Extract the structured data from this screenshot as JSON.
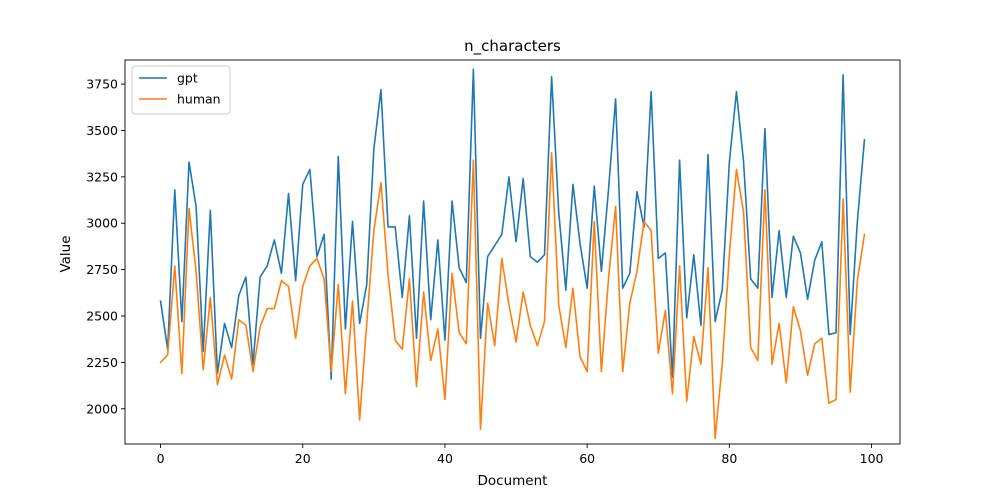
{
  "chart_data": {
    "type": "line",
    "title": "n_characters",
    "xlabel": "Document",
    "ylabel": "Value",
    "xlim": [
      -5,
      104
    ],
    "ylim": [
      1810,
      3880
    ],
    "xticks": [
      0,
      20,
      40,
      60,
      80,
      100
    ],
    "yticks": [
      2000,
      2250,
      2500,
      2750,
      3000,
      3250,
      3500,
      3750
    ],
    "xtick_labels": [
      "0",
      "20",
      "40",
      "60",
      "80",
      "100"
    ],
    "ytick_labels": [
      "2000",
      "2250",
      "2500",
      "2750",
      "3000",
      "3250",
      "3500",
      "3750"
    ],
    "legend_position": "upper-left",
    "grid": false,
    "series": [
      {
        "name": "gpt",
        "color": "#1f77b4",
        "values": [
          2580,
          2320,
          3180,
          2470,
          3330,
          3090,
          2310,
          3070,
          2190,
          2460,
          2330,
          2610,
          2710,
          2240,
          2710,
          2770,
          2910,
          2730,
          3160,
          2690,
          3210,
          3290,
          2820,
          2940,
          2160,
          3360,
          2430,
          3010,
          2460,
          2670,
          3400,
          3720,
          2980,
          2980,
          2600,
          3040,
          2380,
          3120,
          2480,
          2910,
          2370,
          3120,
          2760,
          2680,
          3830,
          2380,
          2820,
          2880,
          2940,
          3250,
          2900,
          3240,
          2820,
          2790,
          2830,
          3790,
          3060,
          2640,
          3210,
          2890,
          2650,
          3200,
          2740,
          3180,
          3670,
          2650,
          2730,
          3170,
          2980,
          3710,
          2810,
          2840,
          2170,
          3340,
          2490,
          2830,
          2450,
          3370,
          2470,
          2640,
          3330,
          3710,
          3330,
          2700,
          2650,
          3510,
          2600,
          2960,
          2600,
          2930,
          2840,
          2590,
          2800,
          2900,
          2400,
          2410,
          3800,
          2400,
          3010,
          3450
        ]
      },
      {
        "name": "human",
        "color": "#ff7f0e",
        "values": [
          2250,
          2290,
          2770,
          2190,
          3080,
          2740,
          2210,
          2600,
          2130,
          2290,
          2160,
          2480,
          2450,
          2200,
          2440,
          2540,
          2540,
          2690,
          2660,
          2380,
          2660,
          2770,
          2810,
          2700,
          2200,
          2670,
          2080,
          2580,
          1940,
          2460,
          2960,
          3220,
          2720,
          2370,
          2320,
          2700,
          2120,
          2630,
          2260,
          2430,
          2050,
          2730,
          2410,
          2350,
          3340,
          1890,
          2570,
          2340,
          2810,
          2560,
          2360,
          2630,
          2450,
          2340,
          2470,
          3380,
          2560,
          2330,
          2650,
          2280,
          2200,
          3010,
          2200,
          2700,
          3090,
          2200,
          2570,
          2740,
          3010,
          2960,
          2300,
          2530,
          2080,
          2770,
          2040,
          2390,
          2240,
          2760,
          1840,
          2240,
          2830,
          3290,
          3060,
          2330,
          2260,
          3180,
          2240,
          2460,
          2140,
          2550,
          2420,
          2180,
          2350,
          2380,
          2030,
          2050,
          3130,
          2090,
          2690,
          2940
        ]
      }
    ]
  }
}
